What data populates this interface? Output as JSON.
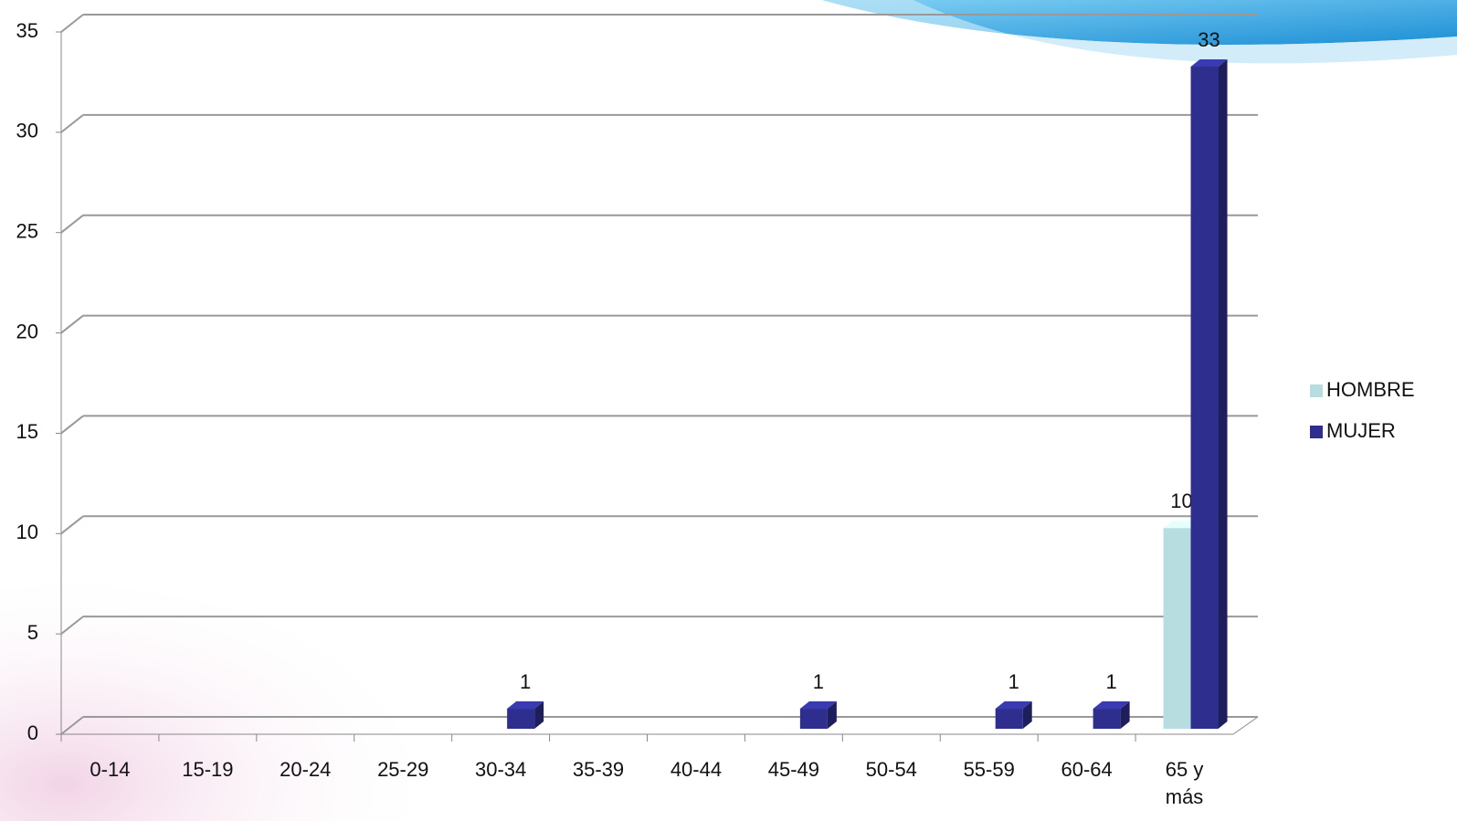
{
  "chart_data": {
    "type": "bar3d",
    "categories": [
      "0-14",
      "15-19",
      "20-24",
      "25-29",
      "30-34",
      "35-39",
      "40-44",
      "45-49",
      "50-54",
      "55-59",
      "60-64",
      "65 y más"
    ],
    "series": [
      {
        "name": "HOMBRE",
        "color": "#b7dde1",
        "values": [
          null,
          null,
          null,
          null,
          null,
          null,
          null,
          null,
          null,
          null,
          null,
          10
        ]
      },
      {
        "name": "MUJER",
        "color": "#2e2e8f",
        "values": [
          null,
          null,
          null,
          null,
          1,
          null,
          null,
          1,
          null,
          1,
          1,
          33
        ]
      }
    ],
    "ylim": [
      0,
      35
    ],
    "yticks": [
      0,
      5,
      10,
      15,
      20,
      25,
      30,
      35
    ],
    "grid": true,
    "legend": "right"
  }
}
